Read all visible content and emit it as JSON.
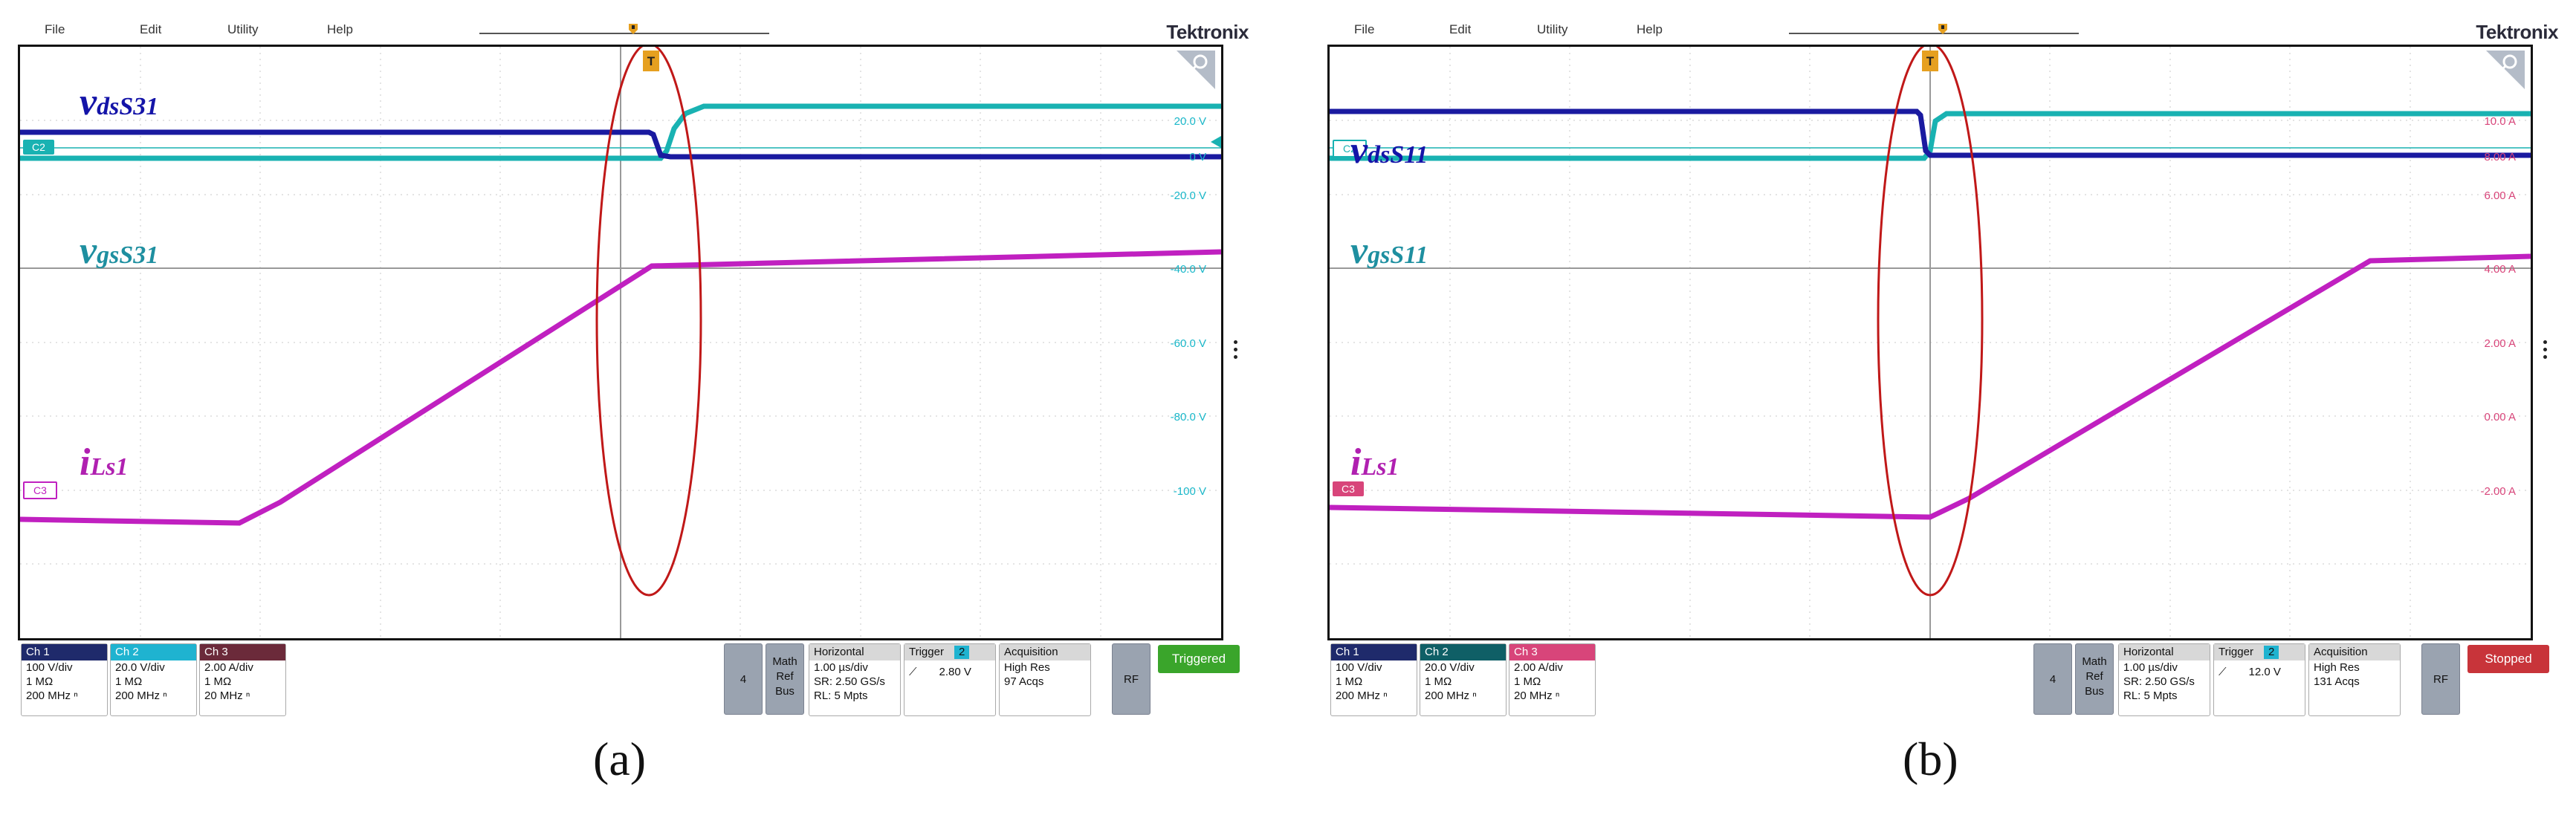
{
  "panels": [
    {
      "id": "a",
      "menu": [
        "File",
        "Edit",
        "Utility",
        "Help"
      ],
      "brand": "Tektronix",
      "waveform_labels": {
        "vds": {
          "main": "v",
          "sub": "dsS31"
        },
        "vgs": {
          "main": "v",
          "sub": "gsS31"
        },
        "iLs": {
          "main": "i",
          "sub": "Ls1"
        }
      },
      "ch2_badge": "C2",
      "ch3_badge": "C3",
      "scale_labels": [
        "20.0 V",
        "0 V",
        "-20.0 V",
        "-40.0 V",
        "-60.0 V",
        "-80.0 V",
        "-100 V"
      ],
      "scale_color": "#19b7c9",
      "channels": [
        {
          "title": "Ch 1",
          "lines": [
            "100 V/div",
            "1 MΩ",
            "200 MHz ⁿ"
          ],
          "color": "#1f2a6b"
        },
        {
          "title": "Ch 2",
          "lines": [
            "20.0 V/div",
            "1 MΩ",
            "200 MHz ⁿ"
          ],
          "color": "#1fb3d0"
        },
        {
          "title": "Ch 3",
          "lines": [
            "2.00 A/div",
            "1 MΩ",
            "20 MHz ⁿ"
          ],
          "color": "#6b2a3a"
        }
      ],
      "btn_4": "4",
      "btn_math": [
        "Math",
        "Ref",
        "Bus"
      ],
      "horizontal": {
        "title": "Horizontal",
        "lines": [
          "1.00 µs/div",
          "SR: 2.50 GS/s",
          "RL: 5 Mpts"
        ]
      },
      "trigger": {
        "title": "Trigger",
        "badge": "2",
        "value": "2.80 V"
      },
      "acquisition": {
        "title": "Acquisition",
        "lines": [
          "High Res",
          "97 Acqs"
        ]
      },
      "rf": "RF",
      "status": {
        "label": "Triggered",
        "color": "#3aa52b"
      },
      "caption": "(a)"
    },
    {
      "id": "b",
      "menu": [
        "File",
        "Edit",
        "Utility",
        "Help"
      ],
      "brand": "Tektronix",
      "waveform_labels": {
        "vds": {
          "main": "v",
          "sub": "dsS11"
        },
        "vgs": {
          "main": "v",
          "sub": "gsS11"
        },
        "iLs": {
          "main": "i",
          "sub": "Ls1"
        }
      },
      "ch2_badge": "C2",
      "ch3_badge": "C3",
      "scale_labels": [
        "10.0 A",
        "8.00 A",
        "6.00 A",
        "4.00 A",
        "2.00 A",
        "0.00 A",
        "-2.00 A"
      ],
      "scale_color": "#d8457a",
      "channels": [
        {
          "title": "Ch 1",
          "lines": [
            "100 V/div",
            "1 MΩ",
            "200 MHz ⁿ"
          ],
          "color": "#1f2a6b"
        },
        {
          "title": "Ch 2",
          "lines": [
            "20.0 V/div",
            "1 MΩ",
            "200 MHz ⁿ"
          ],
          "color": "#0f5f66"
        },
        {
          "title": "Ch 3",
          "lines": [
            "2.00 A/div",
            "1 MΩ",
            "20 MHz ⁿ"
          ],
          "color": "#d8457a"
        }
      ],
      "btn_4": "4",
      "btn_math": [
        "Math",
        "Ref",
        "Bus"
      ],
      "horizontal": {
        "title": "Horizontal",
        "lines": [
          "1.00 µs/div",
          "SR: 2.50 GS/s",
          "RL: 5 Mpts"
        ]
      },
      "trigger": {
        "title": "Trigger",
        "badge": "2",
        "value": "12.0 V"
      },
      "acquisition": {
        "title": "Acquisition",
        "lines": [
          "High Res",
          "131 Acqs"
        ]
      },
      "rf": "RF",
      "status": {
        "label": "Stopped",
        "color": "#c8343a"
      },
      "caption": "(b)"
    }
  ],
  "colors": {
    "ch1": "#1a1aa0",
    "ch2": "#19b2b2",
    "ch3": "#c020c0",
    "highlight_ellipse": "#c01818",
    "label_vds": "#1414a8",
    "label_vgs": "#1e8fa0",
    "label_iLs": "#b020b0"
  }
}
